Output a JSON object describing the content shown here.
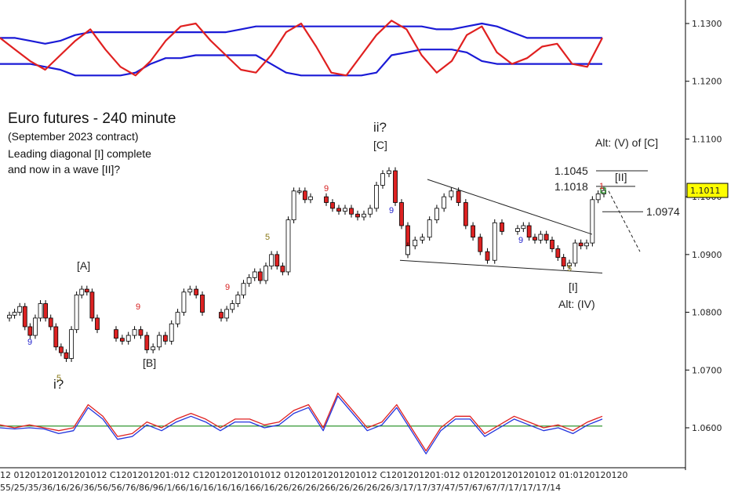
{
  "title": "Euro futures - 240 minute",
  "subtitle": "(September 2023 contract)",
  "note_line1": "Leading diagonal [I] complete",
  "note_line2": "and now in a wave [II]?",
  "colors": {
    "up_candle": "#ffffff",
    "down_candle": "#dd2222",
    "candle_outline": "#000000",
    "upper_red_line": "#e02020",
    "upper_blue_band": "#1a1ad6",
    "lower_red_line": "#e02020",
    "lower_blue_line": "#2233dd",
    "lower_green_line": "#1a8a1a",
    "price_tag_bg": "#ffff00",
    "count_red": "#d62020",
    "count_blue": "#2222cc",
    "count_olive": "#8a7a1a"
  },
  "chart_data": {
    "type": "candlestick",
    "y_axis_ticks": [
      "1.1300",
      "1.1200",
      "1.1100",
      "1.1000",
      "1.0900",
      "1.0800",
      "1.0700",
      "1.0600"
    ],
    "y_axis_values": [
      1.13,
      1.12,
      1.11,
      1.1,
      1.09,
      1.08,
      1.07,
      1.06
    ],
    "current_price": "1.1011",
    "x_axis_text": "12  01201201201201012  C1201201201:012  C120120120101012  01201201201201012  C1201201201:012  01201201201201012  01:0120120120",
    "x_axis_dates": "55/25/35/36/16/26/36/56/56/76/86/96/1/66/16/16/16/16/166/16/26/26/26/266/26/26/26/26/3/17/17/37/47/57/67/67/7/17/17/17/14",
    "price_series": [
      1.0795,
      1.08,
      1.081,
      1.0775,
      1.076,
      1.079,
      1.0815,
      1.079,
      1.0775,
      1.074,
      1.073,
      1.072,
      1.077,
      1.083,
      1.084,
      1.0835,
      1.079,
      1.077,
      1.0755,
      1.075,
      1.076,
      1.077,
      1.076,
      1.0735,
      1.074,
      1.076,
      1.075,
      1.078,
      1.08,
      1.0835,
      1.084,
      1.083,
      1.08,
      1.079,
      1.0805,
      1.0815,
      1.083,
      1.085,
      1.086,
      1.087,
      1.0855,
      1.088,
      1.09,
      1.088,
      1.087,
      1.096,
      1.101,
      1.101,
      1.0995,
      1.1,
      1.099,
      1.098,
      1.0975,
      1.098,
      1.097,
      1.0965,
      1.097,
      1.098,
      1.102,
      1.104,
      1.1045,
      1.099,
      1.095,
      1.09,
      1.0915,
      1.0925,
      1.093,
      1.096,
      1.098,
      1.1,
      1.101,
      1.099,
      1.095,
      1.093,
      1.0905,
      1.089,
      1.0955,
      1.094,
      1.0945,
      1.095,
      1.093,
      1.0925,
      1.0935,
      1.0925,
      1.091,
      1.0895,
      1.088,
      1.0885,
      1.092,
      1.0915,
      1.092,
      1.0995,
      1.1005,
      1.1011
    ],
    "upper_indicator": {
      "red_line": [
        1.1275,
        1.1255,
        1.1235,
        1.122,
        1.1245,
        1.127,
        1.129,
        1.1255,
        1.1225,
        1.121,
        1.1235,
        1.127,
        1.1295,
        1.13,
        1.127,
        1.1245,
        1.122,
        1.1215,
        1.1245,
        1.1285,
        1.13,
        1.126,
        1.1215,
        1.121,
        1.1245,
        1.128,
        1.1305,
        1.129,
        1.1245,
        1.1215,
        1.1235,
        1.128,
        1.1295,
        1.125,
        1.123,
        1.124,
        1.126,
        1.1265,
        1.123,
        1.1225,
        1.1275
      ],
      "blue_upper": [
        1.1275,
        1.1275,
        1.127,
        1.1265,
        1.127,
        1.128,
        1.1285,
        1.1285,
        1.1285,
        1.1285,
        1.1285,
        1.1285,
        1.1285,
        1.1285,
        1.1285,
        1.1285,
        1.129,
        1.1295,
        1.1295,
        1.1295,
        1.1295,
        1.1295,
        1.1295,
        1.1295,
        1.1295,
        1.1295,
        1.1295,
        1.1295,
        1.1295,
        1.129,
        1.129,
        1.1295,
        1.13,
        1.1295,
        1.1285,
        1.1275,
        1.1275,
        1.1275,
        1.1275,
        1.1275,
        1.1275
      ],
      "blue_lower": [
        1.123,
        1.123,
        1.123,
        1.1225,
        1.122,
        1.121,
        1.121,
        1.121,
        1.121,
        1.1215,
        1.123,
        1.124,
        1.124,
        1.1245,
        1.1245,
        1.1245,
        1.1245,
        1.1245,
        1.123,
        1.1215,
        1.121,
        1.121,
        1.121,
        1.121,
        1.121,
        1.1215,
        1.1245,
        1.125,
        1.1255,
        1.1255,
        1.1255,
        1.125,
        1.1235,
        1.123,
        1.123,
        1.123,
        1.123,
        1.123,
        1.123,
        1.123,
        1.123
      ]
    },
    "lower_indicator": {
      "zero_line": 1.0603,
      "red_line": [
        1.0605,
        1.06,
        1.0605,
        1.06,
        1.0595,
        1.06,
        1.064,
        1.062,
        1.0585,
        1.059,
        1.061,
        1.06,
        1.0615,
        1.0625,
        1.0615,
        1.06,
        1.0615,
        1.0615,
        1.0605,
        1.061,
        1.063,
        1.064,
        1.06,
        1.066,
        1.063,
        1.06,
        1.061,
        1.064,
        1.06,
        1.056,
        1.06,
        1.062,
        1.062,
        1.059,
        1.0605,
        1.062,
        1.061,
        1.06,
        1.0605,
        1.0595,
        1.061,
        1.062
      ],
      "blue_line": [
        1.06,
        1.0598,
        1.06,
        1.0598,
        1.059,
        1.0595,
        1.0635,
        1.0615,
        1.058,
        1.0585,
        1.0605,
        1.0595,
        1.061,
        1.062,
        1.061,
        1.0595,
        1.061,
        1.061,
        1.06,
        1.0605,
        1.0625,
        1.0635,
        1.0595,
        1.0655,
        1.0625,
        1.0595,
        1.0605,
        1.0635,
        1.0595,
        1.0555,
        1.0595,
        1.0615,
        1.0615,
        1.0585,
        1.06,
        1.0615,
        1.0605,
        1.0595,
        1.06,
        1.059,
        1.0605,
        1.0615
      ]
    },
    "wave_labels": [
      "[A]",
      "[B]",
      "ii?",
      "[C]",
      "i?",
      "[I]",
      "Alt: (IV)",
      "[II]",
      "Alt: (V) of [C]"
    ],
    "price_levels": [
      {
        "label": "1.1045",
        "value": 1.1045
      },
      {
        "label": "1.1018",
        "value": 1.1018
      },
      {
        "label": "1.0974",
        "value": 1.0974
      }
    ],
    "count_marks": [
      {
        "text": "9",
        "color": "blue"
      },
      {
        "text": "5",
        "color": "olive"
      },
      {
        "text": "9",
        "color": "red"
      },
      {
        "text": "9",
        "color": "red"
      },
      {
        "text": "5",
        "color": "olive"
      },
      {
        "text": "9",
        "color": "red"
      },
      {
        "text": "9",
        "color": "blue"
      },
      {
        "text": "9",
        "color": "blue"
      },
      {
        "text": "5",
        "color": "olive"
      },
      {
        "text": "1",
        "color": "red"
      }
    ]
  }
}
